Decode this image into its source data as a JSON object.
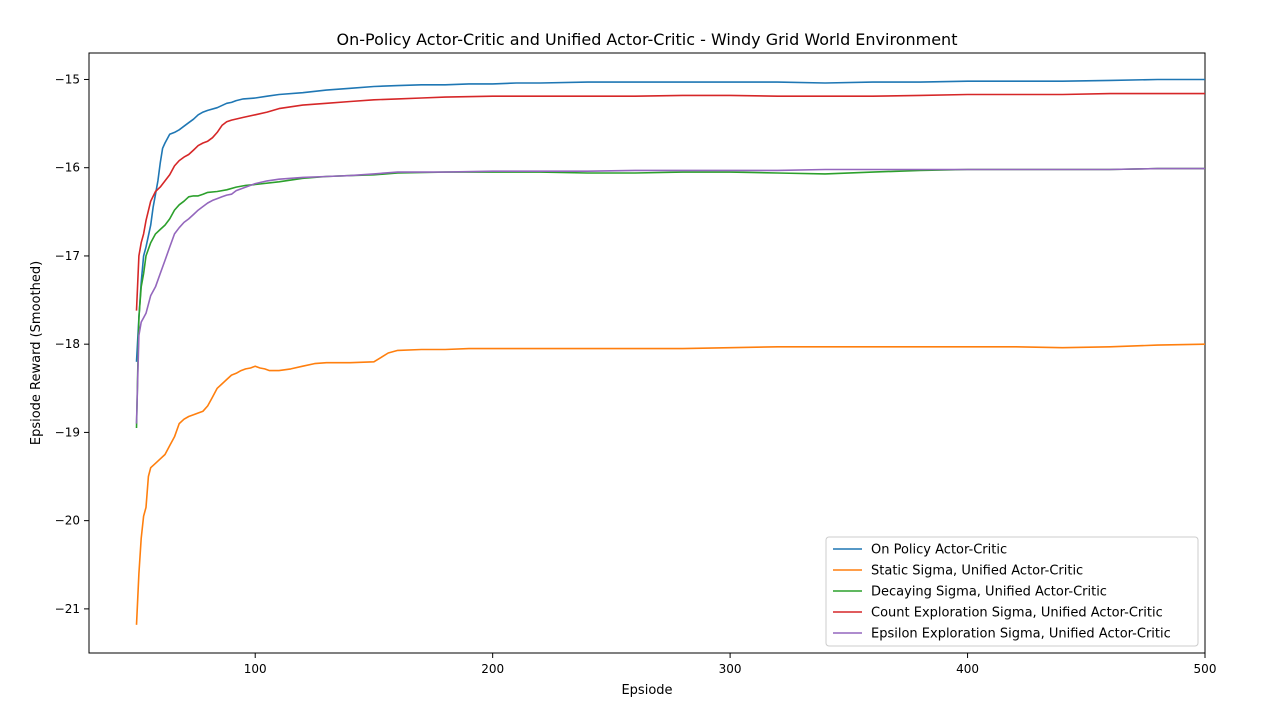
{
  "chart_data": {
    "type": "line",
    "title": "On-Policy Actor-Critic and Unified Actor-Critic - Windy Grid World Environment",
    "xlabel": "Epsiode",
    "ylabel": "Epsiode Reward (Smoothed)",
    "xlim": [
      30,
      500
    ],
    "ylim": [
      -21.5,
      -14.7
    ],
    "xticks": [
      100,
      200,
      300,
      400,
      500
    ],
    "xtick_labels": [
      "100",
      "200",
      "300",
      "400",
      "500"
    ],
    "yticks": [
      -21,
      -20,
      -19,
      -18,
      -17,
      -16,
      -15
    ],
    "ytick_labels": [
      "−21",
      "−20",
      "−19",
      "−18",
      "−17",
      "−16",
      "−15"
    ],
    "grid": false,
    "legend_position": "lower-right",
    "series": [
      {
        "name": "On Policy Actor-Critic",
        "color": "#1f77b4",
        "x": [
          50,
          51,
          52,
          53,
          54,
          56,
          57,
          58,
          59,
          60,
          61,
          62,
          64,
          66,
          68,
          70,
          72,
          74,
          76,
          78,
          80,
          84,
          88,
          90,
          92,
          95,
          100,
          105,
          110,
          120,
          130,
          140,
          150,
          160,
          170,
          180,
          190,
          200,
          210,
          220,
          240,
          260,
          280,
          300,
          320,
          340,
          360,
          380,
          400,
          420,
          440,
          460,
          480,
          500
        ],
        "values": [
          -18.2,
          -17.7,
          -17.3,
          -17.0,
          -16.9,
          -16.65,
          -16.45,
          -16.3,
          -16.15,
          -15.95,
          -15.78,
          -15.72,
          -15.62,
          -15.6,
          -15.57,
          -15.53,
          -15.49,
          -15.45,
          -15.4,
          -15.37,
          -15.35,
          -15.32,
          -15.27,
          -15.26,
          -15.24,
          -15.22,
          -15.21,
          -15.19,
          -15.17,
          -15.15,
          -15.12,
          -15.1,
          -15.08,
          -15.07,
          -15.06,
          -15.06,
          -15.05,
          -15.05,
          -15.04,
          -15.04,
          -15.03,
          -15.03,
          -15.03,
          -15.03,
          -15.03,
          -15.04,
          -15.03,
          -15.03,
          -15.02,
          -15.02,
          -15.02,
          -15.01,
          -15.0,
          -15.0
        ]
      },
      {
        "name": "Static Sigma, Unified Actor-Critic",
        "color": "#ff7f0e",
        "x": [
          50,
          51,
          52,
          53,
          54,
          55,
          56,
          58,
          60,
          62,
          64,
          66,
          68,
          70,
          72,
          74,
          76,
          78,
          80,
          82,
          84,
          86,
          88,
          90,
          92,
          94,
          96,
          98,
          100,
          102,
          104,
          106,
          110,
          115,
          120,
          125,
          130,
          140,
          150,
          153,
          156,
          160,
          170,
          180,
          190,
          200,
          220,
          240,
          260,
          280,
          300,
          320,
          340,
          360,
          380,
          400,
          420,
          440,
          460,
          480,
          500
        ],
        "values": [
          -21.18,
          -20.6,
          -20.2,
          -19.95,
          -19.85,
          -19.5,
          -19.4,
          -19.35,
          -19.3,
          -19.25,
          -19.15,
          -19.05,
          -18.9,
          -18.85,
          -18.82,
          -18.8,
          -18.78,
          -18.76,
          -18.7,
          -18.6,
          -18.5,
          -18.45,
          -18.4,
          -18.35,
          -18.33,
          -18.3,
          -18.28,
          -18.27,
          -18.25,
          -18.27,
          -18.28,
          -18.3,
          -18.3,
          -18.28,
          -18.25,
          -18.22,
          -18.21,
          -18.21,
          -18.2,
          -18.15,
          -18.1,
          -18.07,
          -18.06,
          -18.06,
          -18.05,
          -18.05,
          -18.05,
          -18.05,
          -18.05,
          -18.05,
          -18.04,
          -18.03,
          -18.03,
          -18.03,
          -18.03,
          -18.03,
          -18.03,
          -18.04,
          -18.03,
          -18.01,
          -18.0
        ]
      },
      {
        "name": "Decaying Sigma, Unified Actor-Critic",
        "color": "#2ca02c",
        "x": [
          50,
          51,
          52,
          53,
          54,
          56,
          58,
          60,
          62,
          64,
          66,
          68,
          70,
          72,
          74,
          76,
          78,
          80,
          84,
          88,
          92,
          96,
          100,
          110,
          120,
          130,
          140,
          150,
          160,
          180,
          200,
          220,
          240,
          260,
          280,
          300,
          320,
          340,
          360,
          380,
          400,
          420,
          440,
          460,
          480,
          500
        ],
        "values": [
          -18.95,
          -17.7,
          -17.35,
          -17.2,
          -17.0,
          -16.85,
          -16.75,
          -16.7,
          -16.65,
          -16.58,
          -16.48,
          -16.42,
          -16.38,
          -16.33,
          -16.32,
          -16.32,
          -16.3,
          -16.28,
          -16.27,
          -16.25,
          -16.22,
          -16.2,
          -16.19,
          -16.16,
          -16.12,
          -16.1,
          -16.09,
          -16.08,
          -16.06,
          -16.05,
          -16.05,
          -16.05,
          -16.06,
          -16.06,
          -16.05,
          -16.05,
          -16.06,
          -16.07,
          -16.05,
          -16.03,
          -16.02,
          -16.02,
          -16.02,
          -16.02,
          -16.01,
          -16.01
        ]
      },
      {
        "name": "Count Exploration Sigma, Unified Actor-Critic",
        "color": "#d62728",
        "x": [
          50,
          51,
          52,
          53,
          54,
          56,
          58,
          60,
          62,
          64,
          66,
          68,
          70,
          72,
          74,
          76,
          78,
          80,
          82,
          84,
          86,
          88,
          90,
          95,
          100,
          105,
          110,
          115,
          120,
          130,
          140,
          150,
          160,
          170,
          180,
          200,
          220,
          240,
          260,
          280,
          300,
          320,
          340,
          360,
          380,
          400,
          420,
          440,
          460,
          480,
          500
        ],
        "values": [
          -17.62,
          -17.0,
          -16.85,
          -16.75,
          -16.6,
          -16.38,
          -16.27,
          -16.22,
          -16.15,
          -16.08,
          -15.98,
          -15.92,
          -15.88,
          -15.85,
          -15.8,
          -15.75,
          -15.72,
          -15.7,
          -15.66,
          -15.6,
          -15.52,
          -15.48,
          -15.46,
          -15.43,
          -15.4,
          -15.37,
          -15.33,
          -15.31,
          -15.29,
          -15.27,
          -15.25,
          -15.23,
          -15.22,
          -15.21,
          -15.2,
          -15.19,
          -15.19,
          -15.19,
          -15.19,
          -15.18,
          -15.18,
          -15.19,
          -15.19,
          -15.19,
          -15.18,
          -15.17,
          -15.17,
          -15.17,
          -15.16,
          -15.16,
          -15.16
        ]
      },
      {
        "name": "Epsilon Exploration Sigma, Unified Actor-Critic",
        "color": "#9467bd",
        "x": [
          50,
          51,
          52,
          53,
          54,
          56,
          58,
          60,
          62,
          64,
          66,
          68,
          70,
          72,
          74,
          76,
          78,
          80,
          82,
          84,
          86,
          88,
          90,
          92,
          96,
          100,
          105,
          110,
          120,
          130,
          140,
          150,
          160,
          180,
          200,
          220,
          240,
          260,
          280,
          300,
          320,
          340,
          360,
          380,
          400,
          420,
          440,
          460,
          480,
          500
        ],
        "values": [
          -18.9,
          -17.9,
          -17.75,
          -17.7,
          -17.65,
          -17.45,
          -17.35,
          -17.2,
          -17.05,
          -16.9,
          -16.75,
          -16.68,
          -16.62,
          -16.58,
          -16.53,
          -16.48,
          -16.44,
          -16.4,
          -16.37,
          -16.35,
          -16.33,
          -16.31,
          -16.3,
          -16.26,
          -16.22,
          -16.18,
          -16.15,
          -16.13,
          -16.11,
          -16.1,
          -16.09,
          -16.07,
          -16.05,
          -16.05,
          -16.04,
          -16.04,
          -16.04,
          -16.03,
          -16.03,
          -16.03,
          -16.03,
          -16.02,
          -16.02,
          -16.02,
          -16.02,
          -16.02,
          -16.02,
          -16.02,
          -16.01,
          -16.01
        ]
      }
    ]
  }
}
